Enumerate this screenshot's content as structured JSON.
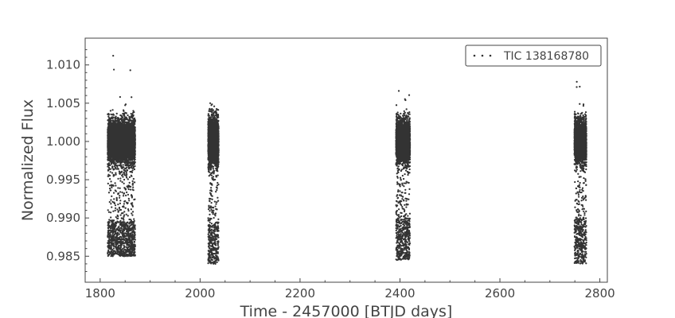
{
  "chart_data": {
    "type": "scatter",
    "xlabel": "Time - 2457000 [BTJD days]",
    "ylabel": "Normalized Flux",
    "xlim": [
      1770,
      2815
    ],
    "ylim": [
      0.9816,
      1.0135
    ],
    "xticks": [
      1800,
      2000,
      2200,
      2400,
      2600,
      2800
    ],
    "xtick_labels": [
      "1800",
      "2000",
      "2200",
      "2400",
      "2600",
      "2800"
    ],
    "yticks": [
      0.985,
      0.99,
      0.995,
      1.0,
      1.005,
      1.01
    ],
    "ytick_labels": [
      "0.985",
      "0.990",
      "0.995",
      "1.000",
      "1.005",
      "1.010"
    ],
    "grid": false,
    "legend_position": "top-right",
    "series": [
      {
        "name": "TIC 138168780",
        "color": "#333333",
        "marker": "dot",
        "segments": [
          {
            "x_range": [
              1815,
              1870
            ],
            "baseline": 1.0,
            "scatter_range": [
              0.997,
              1.003
            ],
            "dip_level": 0.9875,
            "dip_range": [
              0.985,
              0.9895
            ],
            "outliers_max": 1.0112
          },
          {
            "x_range": [
              2016,
              2037
            ],
            "baseline": 1.0,
            "scatter_range": [
              0.9965,
              1.0035
            ],
            "dip_level": 0.9875,
            "dip_range": [
              0.984,
              0.9895
            ],
            "outliers_max": 1.005
          },
          {
            "x_range": [
              2392,
              2420
            ],
            "baseline": 1.0,
            "scatter_range": [
              0.997,
              1.003
            ],
            "dip_level": 0.9875,
            "dip_range": [
              0.9845,
              0.99
            ],
            "outliers_max": 1.0066
          },
          {
            "x_range": [
              2749,
              2773
            ],
            "baseline": 1.0,
            "scatter_range": [
              0.997,
              1.003
            ],
            "dip_level": 0.9875,
            "dip_range": [
              0.984,
              0.99
            ],
            "outliers_max": 1.0078
          }
        ]
      }
    ]
  }
}
